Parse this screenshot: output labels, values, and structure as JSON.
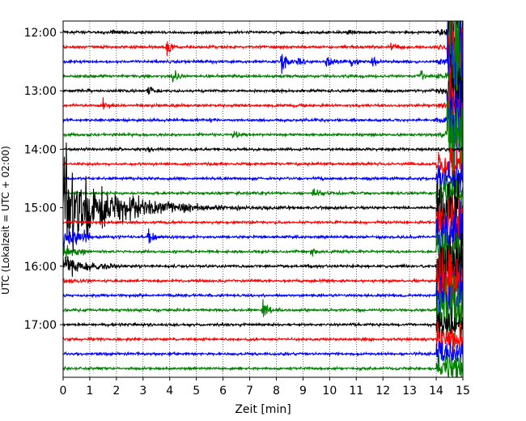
{
  "chart_data": {
    "type": "line",
    "title": "",
    "xlabel": "Zeit  [min]",
    "ylabel": "UTC (Lokalzeit = UTC + 02:00)",
    "xlim": [
      0,
      15
    ],
    "x_ticks": [
      "0",
      "1",
      "2",
      "3",
      "4",
      "5",
      "6",
      "7",
      "8",
      "9",
      "10",
      "11",
      "12",
      "13",
      "14",
      "15"
    ],
    "y_ticks": [
      "12:00",
      "13:00",
      "14:00",
      "15:00",
      "16:00",
      "17:00"
    ],
    "grid": "vertical-dotted",
    "trace_interval_min": 15,
    "first_trace": "12:00",
    "trace_count": 24,
    "color_cycle": [
      "#000000",
      "#ff0000",
      "#0000ff",
      "#008000"
    ],
    "events": [
      {
        "trace": 0,
        "t": 1.8,
        "amp": 3
      },
      {
        "trace": 0,
        "t": 10.7,
        "amp": 3
      },
      {
        "trace": 1,
        "t": 3.9,
        "amp": 8
      },
      {
        "trace": 1,
        "t": 12.3,
        "amp": 7
      },
      {
        "trace": 2,
        "t": 8.2,
        "amp": 12
      },
      {
        "trace": 2,
        "t": 8.8,
        "amp": 8
      },
      {
        "trace": 2,
        "t": 9.9,
        "amp": 10
      },
      {
        "trace": 2,
        "t": 10.8,
        "amp": 6
      },
      {
        "trace": 2,
        "t": 11.6,
        "amp": 6
      },
      {
        "trace": 3,
        "t": 4.1,
        "amp": 7
      },
      {
        "trace": 3,
        "t": 13.4,
        "amp": 7
      },
      {
        "trace": 4,
        "t": 3.2,
        "amp": 6
      },
      {
        "trace": 5,
        "t": 1.5,
        "amp": 9
      },
      {
        "trace": 6,
        "t": 5.5,
        "amp": 2
      },
      {
        "trace": 7,
        "t": 6.4,
        "amp": 5
      },
      {
        "trace": 8,
        "t": 3.2,
        "amp": 3
      },
      {
        "trace": 11,
        "t": 9.4,
        "amp": 8
      },
      {
        "trace": 14,
        "t": 3.2,
        "amp": 11
      },
      {
        "trace": 15,
        "t": 9.3,
        "amp": 5
      },
      {
        "trace": 19,
        "t": 7.5,
        "amp": 13
      }
    ],
    "quake": {
      "trace_start": 12,
      "t_start": 0.0,
      "decay_min": 1.6
    },
    "disturbance": {
      "t_start": 14.0,
      "t_end": 15.0
    }
  }
}
